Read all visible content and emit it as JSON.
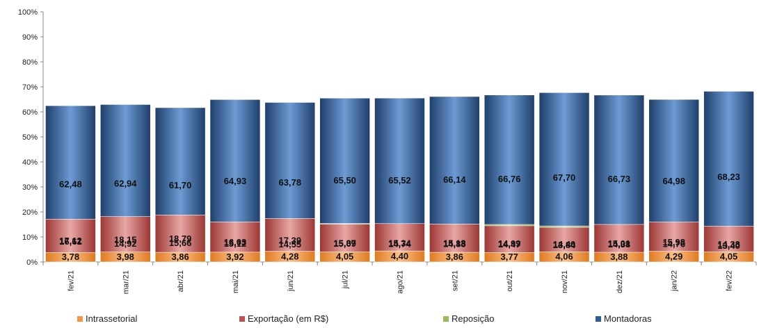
{
  "chart_data": {
    "type": "bar",
    "stacked": true,
    "percent": true,
    "categories": [
      "fev/21",
      "mar/21",
      "abr/21",
      "mai/21",
      "jun/21",
      "jul/21",
      "ago/21",
      "set/21",
      "out/21",
      "nov/21",
      "dez/21",
      "jan/22",
      "fev/22"
    ],
    "series": [
      {
        "name": "Montadoras",
        "color": "#2e5c95",
        "values": [
          62.48,
          62.94,
          61.7,
          64.93,
          63.78,
          65.5,
          65.52,
          66.14,
          66.76,
          67.7,
          66.73,
          64.98,
          68.23
        ],
        "labels": [
          "62,48",
          "62,94",
          "61,70",
          "64,93",
          "63,78",
          "65,50",
          "65,52",
          "66,14",
          "66,76",
          "67,70",
          "66,73",
          "64,98",
          "68,23"
        ]
      },
      {
        "name": "Reposição",
        "color": "#9bbb59",
        "values": [
          16.61,
          14.92,
          15.66,
          15.12,
          14.55,
          15.37,
          14.74,
          14.83,
          14.99,
          14.4,
          14.38,
          14.76,
          13.4
        ],
        "labels": [
          "16,61",
          "14,92",
          "15,66",
          "15,12",
          "14,55",
          "15,37",
          "14,74",
          "14,83",
          "14,99",
          "14,40",
          "14,38",
          "14,76",
          "13,40"
        ]
      },
      {
        "name": "Exportação (em R$)",
        "color": "#c0504d",
        "values": [
          17.12,
          18.15,
          18.79,
          16.03,
          17.39,
          15.09,
          15.34,
          15.18,
          14.47,
          13.84,
          15.01,
          15.98,
          14.33
        ],
        "labels": [
          "17,12",
          "18,15",
          "18,79",
          "16,03",
          "17,39",
          "15,09",
          "15,34",
          "15,18",
          "14,47",
          "13,84",
          "15,01",
          "15,98",
          "14,33"
        ]
      },
      {
        "name": "Intrassetorial",
        "color": "#f79646",
        "values": [
          3.78,
          3.98,
          3.86,
          3.92,
          4.28,
          4.05,
          4.4,
          3.86,
          3.77,
          4.06,
          3.88,
          4.29,
          4.05
        ],
        "labels": [
          "3,78",
          "3,98",
          "3,86",
          "3,92",
          "4,28",
          "4,05",
          "4,40",
          "3,86",
          "3,77",
          "4,06",
          "3,88",
          "4,29",
          "4,05"
        ]
      }
    ],
    "y_ticks": [
      "0%",
      "10%",
      "20%",
      "30%",
      "40%",
      "50%",
      "60%",
      "70%",
      "80%",
      "90%",
      "100%"
    ],
    "ylim": [
      0,
      100
    ],
    "legend": [
      "Intrassetorial",
      "Exportação (em R$)",
      "Reposição",
      "Montadoras"
    ],
    "legend_placement": "bottom",
    "grid": false
  }
}
